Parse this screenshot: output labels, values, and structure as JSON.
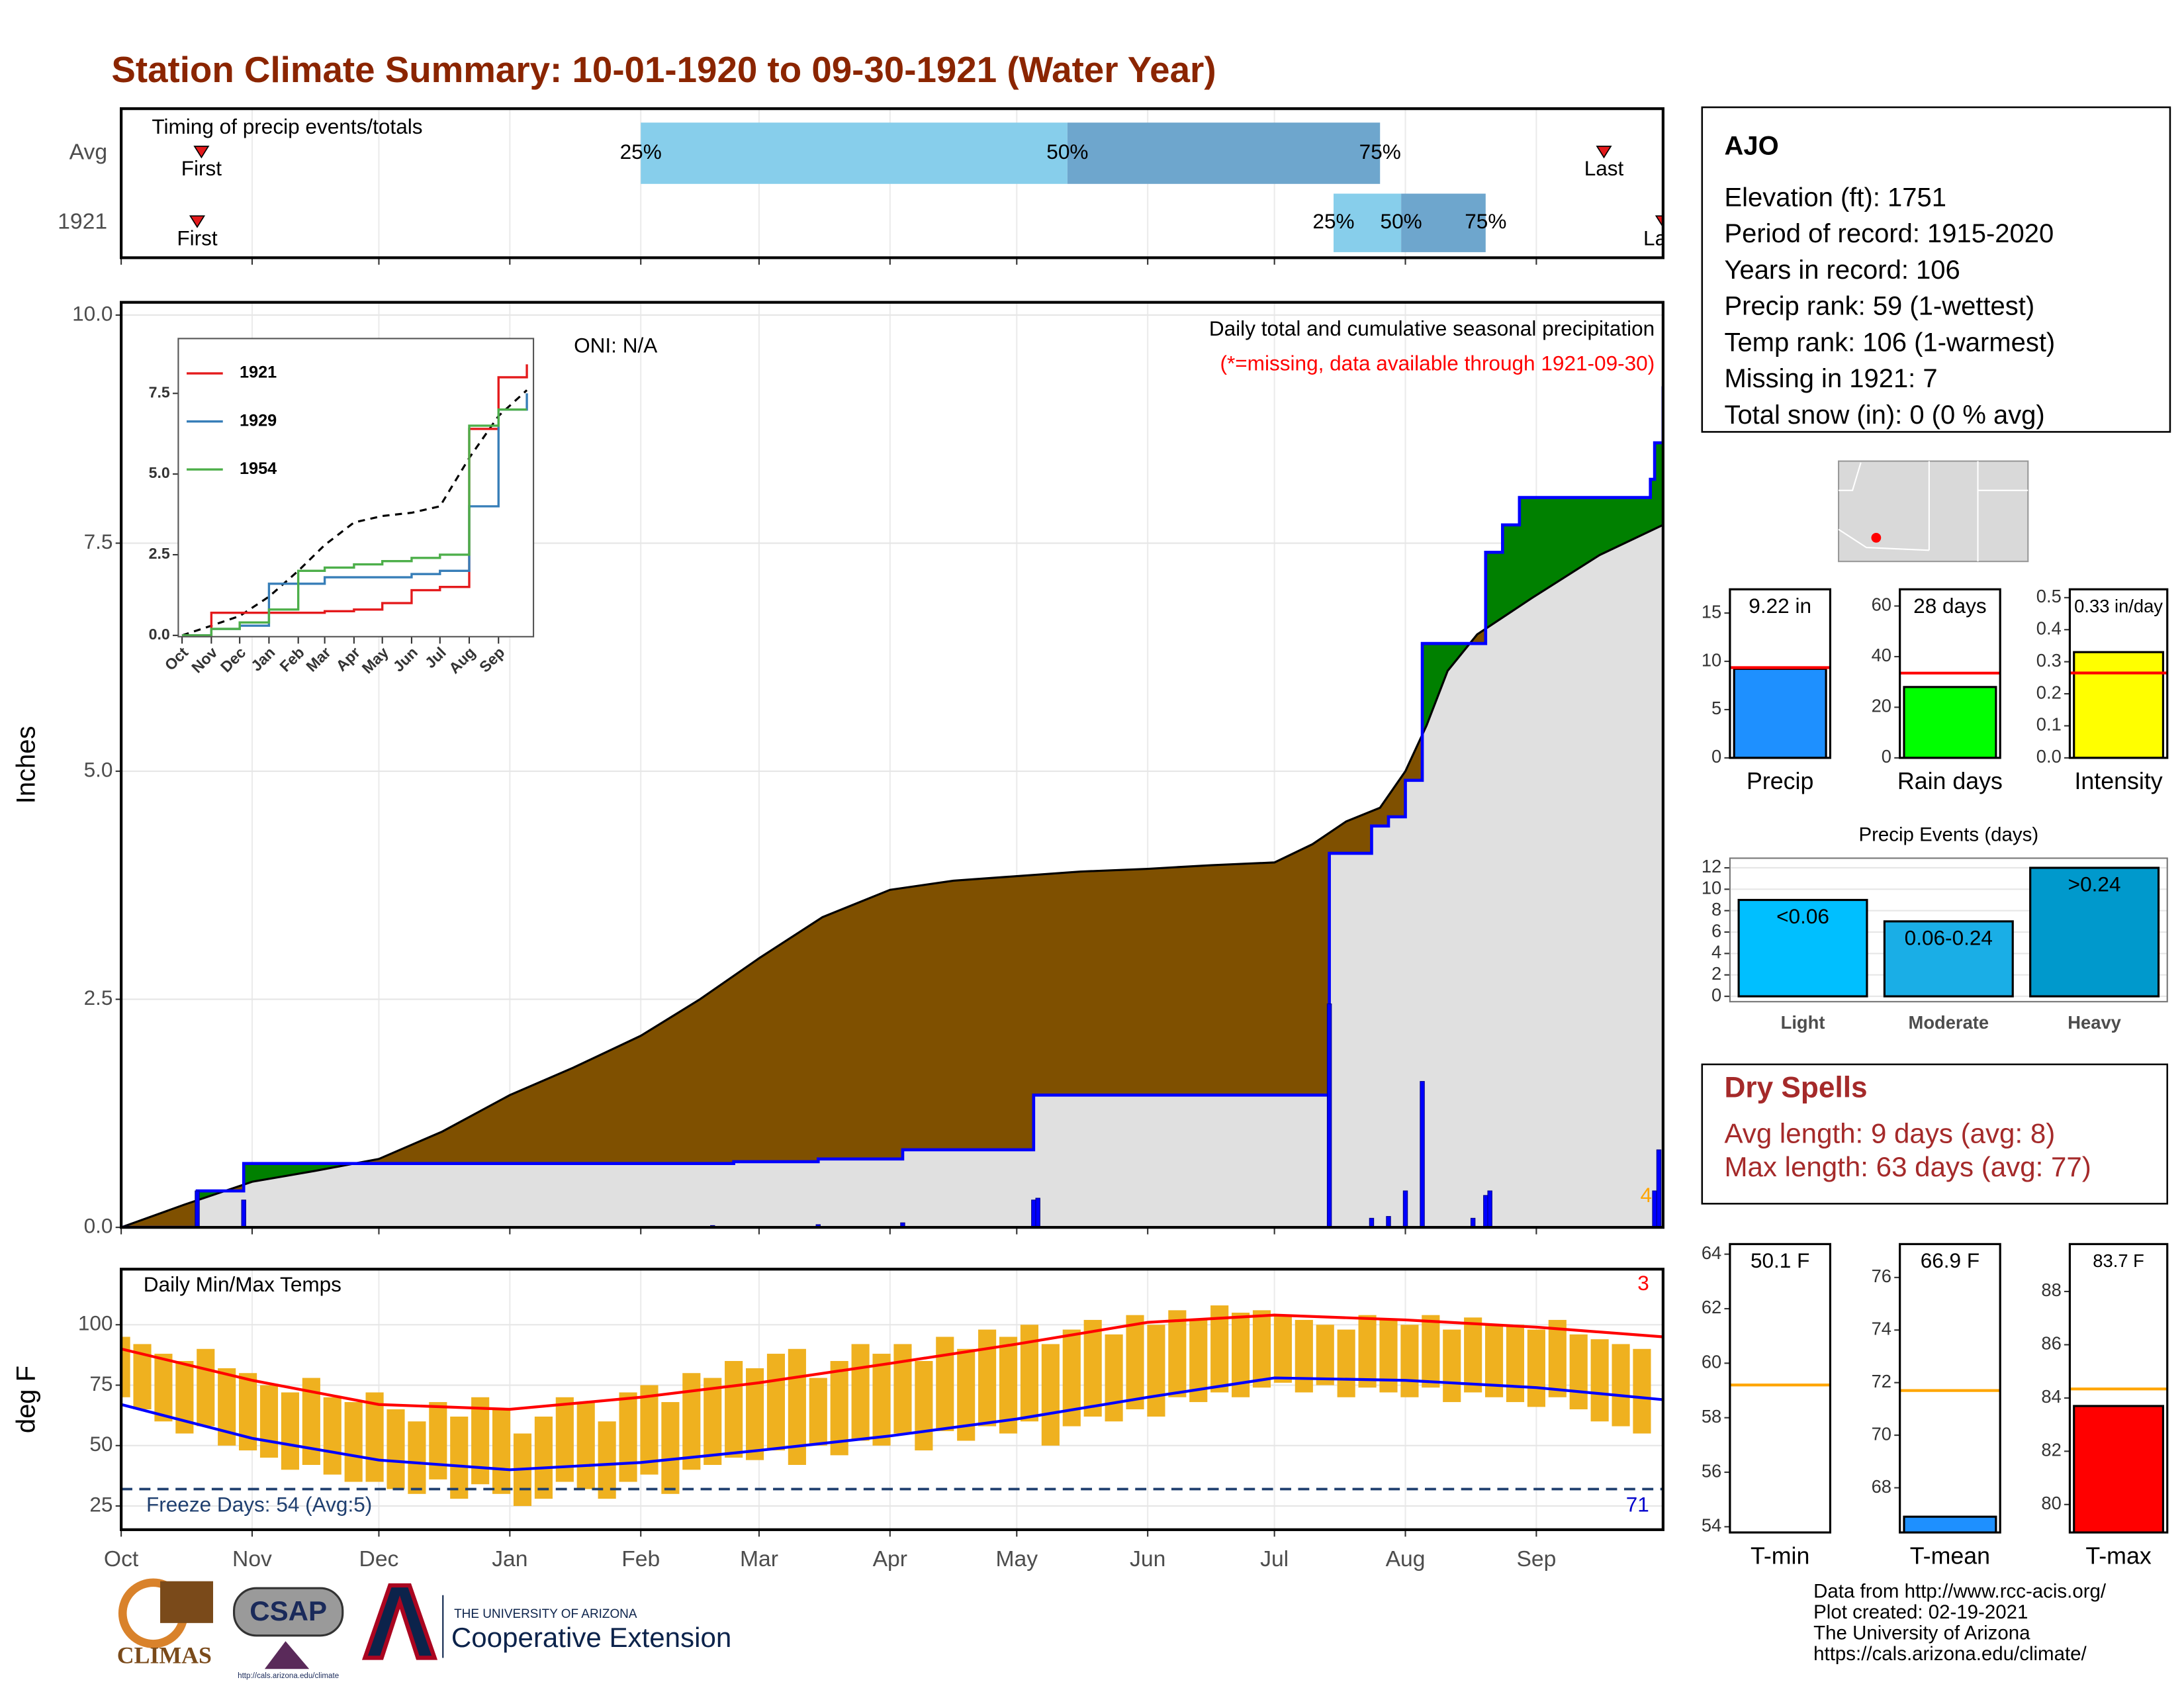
{
  "title": "Station Climate Summary: 10-01-1920 to 09-30-1921 (Water Year)",
  "chart_data": [
    {
      "type": "timing",
      "title": "Timing of precip events/totals",
      "categories": [
        "Avg",
        "1921"
      ],
      "xlim": [
        0,
        365
      ],
      "xticks": [
        0,
        31,
        61,
        92,
        123,
        151,
        182,
        212,
        243,
        273,
        304,
        335
      ],
      "grid": true,
      "colors": [
        "#87ceeb",
        "#6ea6cd"
      ],
      "marker_color": "#e31a1c",
      "first_label": "First",
      "last_label": "Last",
      "quartile_labels": [
        "25%",
        "50%",
        "75%"
      ],
      "rows": [
        {
          "first": 19,
          "quartiles": [
            123,
            224,
            298
          ],
          "last": 351
        },
        {
          "first": 18,
          "quartiles": [
            287,
            303,
            323
          ],
          "last": 365
        }
      ]
    },
    {
      "type": "cumulative",
      "title": "Daily total and cumulative seasonal precipitation",
      "subtitle": "(*=missing, data available through 1921-09-30)",
      "annotations": [
        "ONI: N/A",
        "4"
      ],
      "ylabel": "Inches",
      "xlim": [
        0,
        365
      ],
      "ylim": [
        0,
        10.14
      ],
      "xticks": [
        0,
        31,
        61,
        92,
        123,
        151,
        182,
        212,
        243,
        273,
        304,
        335
      ],
      "yticks": [
        {
          "value": 0,
          "label": "0.0"
        },
        {
          "value": 2.5,
          "label": "2.5"
        },
        {
          "value": 5,
          "label": "5.0"
        },
        {
          "value": 7.5,
          "label": "7.5"
        },
        {
          "value": 10,
          "label": "10.0"
        }
      ],
      "grid": true,
      "average": {
        "color": "#000000",
        "x": [
          0,
          15,
          31,
          46,
          61,
          76,
          92,
          107,
          123,
          137,
          151,
          166,
          182,
          197,
          212,
          227,
          243,
          258,
          273,
          282,
          290,
          298,
          304,
          309,
          314,
          321,
          334,
          350,
          365
        ],
        "values": [
          0,
          0.25,
          0.5,
          0.62,
          0.75,
          1.05,
          1.45,
          1.75,
          2.1,
          2.5,
          2.95,
          3.4,
          3.7,
          3.8,
          3.85,
          3.9,
          3.93,
          3.97,
          4.0,
          4.2,
          4.45,
          4.6,
          5.0,
          5.5,
          6.1,
          6.5,
          6.9,
          7.37,
          7.7
        ]
      },
      "observed": {
        "color": "#0000ff",
        "x": [
          0,
          18,
          29,
          145,
          165,
          185,
          216,
          286,
          296,
          300,
          304,
          308,
          323,
          327,
          331,
          362,
          363,
          365
        ],
        "values": [
          0,
          0.4,
          0.7,
          0.72,
          0.75,
          0.85,
          1.45,
          4.1,
          4.4,
          4.5,
          4.9,
          6.4,
          7.4,
          7.7,
          8.0,
          8.2,
          8.6,
          9.22
        ]
      },
      "daily": {
        "color": "#0000ff",
        "x": [
          18,
          29,
          140,
          165,
          185,
          216,
          217,
          286,
          296,
          300,
          304,
          308,
          320,
          323,
          324,
          363,
          364
        ],
        "values": [
          0.4,
          0.3,
          0.02,
          0.03,
          0.05,
          0.3,
          0.32,
          2.45,
          0.1,
          0.12,
          0.4,
          1.6,
          0.1,
          0.35,
          0.4,
          0.4,
          0.85
        ]
      },
      "colors": {
        "below": "#7f5000",
        "above": "#008000",
        "base": "#e0e0e0"
      }
    },
    {
      "type": "line",
      "xlim": [
        -4,
        372
      ],
      "ylim": [
        -0.04,
        9.2
      ],
      "xticks": [
        {
          "value": 0,
          "label": "Oct"
        },
        {
          "value": 31,
          "label": "Nov"
        },
        {
          "value": 61,
          "label": "Dec"
        },
        {
          "value": 92,
          "label": "Jan"
        },
        {
          "value": 123,
          "label": "Feb"
        },
        {
          "value": 151,
          "label": "Mar"
        },
        {
          "value": 182,
          "label": "Apr"
        },
        {
          "value": 212,
          "label": "May"
        },
        {
          "value": 243,
          "label": "Jun"
        },
        {
          "value": 273,
          "label": "Jul"
        },
        {
          "value": 304,
          "label": "Aug"
        },
        {
          "value": 335,
          "label": "Sep"
        }
      ],
      "yticks": [
        {
          "value": 0,
          "label": "0.0"
        },
        {
          "value": 2.5,
          "label": "2.5"
        },
        {
          "value": 5,
          "label": "5.0"
        },
        {
          "value": 7.5,
          "label": "7.5"
        }
      ],
      "step": true,
      "x": [
        0,
        31,
        61,
        92,
        123,
        151,
        182,
        212,
        243,
        273,
        304,
        335,
        365
      ],
      "series": [
        {
          "name": "1921",
          "color": "#e41a1c",
          "values": [
            0,
            0.7,
            0.7,
            0.7,
            0.7,
            0.75,
            0.8,
            1.0,
            1.4,
            1.5,
            6.4,
            8.0,
            8.4
          ]
        },
        {
          "name": "1929",
          "color": "#377eb8",
          "values": [
            0,
            0.2,
            0.3,
            1.6,
            1.6,
            1.8,
            1.8,
            1.8,
            1.9,
            2.0,
            4.0,
            7.0,
            7.5
          ]
        },
        {
          "name": "1954",
          "color": "#4daf4a",
          "values": [
            0,
            0.2,
            0.4,
            0.8,
            2.0,
            2.1,
            2.2,
            2.3,
            2.4,
            2.5,
            6.5,
            7.0,
            7.0
          ]
        }
      ],
      "average": {
        "color": "#000000",
        "values": [
          0,
          0.3,
          0.6,
          1.2,
          2.0,
          2.8,
          3.5,
          3.7,
          3.8,
          4.0,
          5.5,
          6.8,
          7.6
        ]
      }
    },
    {
      "type": "temps",
      "title": "Daily Min/Max Temps",
      "ylabel": "deg F",
      "annotations": [
        "Freeze Days: 54 (Avg:5)",
        "3",
        "71"
      ],
      "xlim": [
        0,
        365
      ],
      "ylim": [
        15.2,
        123
      ],
      "xticks": [
        {
          "value": 0,
          "label": "Oct"
        },
        {
          "value": 31,
          "label": "Nov"
        },
        {
          "value": 61,
          "label": "Dec"
        },
        {
          "value": 92,
          "label": "Jan"
        },
        {
          "value": 123,
          "label": "Feb"
        },
        {
          "value": 151,
          "label": "Mar"
        },
        {
          "value": 182,
          "label": "Apr"
        },
        {
          "value": 212,
          "label": "May"
        },
        {
          "value": 243,
          "label": "Jun"
        },
        {
          "value": 273,
          "label": "Jul"
        },
        {
          "value": 304,
          "label": "Aug"
        },
        {
          "value": 335,
          "label": "Sep"
        }
      ],
      "yticks": [
        25,
        50,
        75,
        100
      ],
      "grid": true,
      "bar_color": "#efb11f",
      "x": [
        0,
        5,
        10,
        15,
        20,
        25,
        30,
        35,
        40,
        45,
        50,
        55,
        60,
        65,
        70,
        75,
        80,
        85,
        90,
        95,
        100,
        105,
        110,
        115,
        120,
        125,
        130,
        135,
        140,
        145,
        150,
        155,
        160,
        165,
        170,
        175,
        180,
        185,
        190,
        195,
        200,
        205,
        210,
        215,
        220,
        225,
        230,
        235,
        240,
        245,
        250,
        255,
        260,
        265,
        270,
        275,
        280,
        285,
        290,
        295,
        300,
        305,
        310,
        315,
        320,
        325,
        330,
        335,
        340,
        345,
        350,
        355,
        360
      ],
      "max_values": [
        95,
        92,
        88,
        85,
        90,
        82,
        80,
        75,
        72,
        78,
        70,
        68,
        72,
        65,
        60,
        68,
        62,
        70,
        65,
        55,
        62,
        70,
        68,
        60,
        72,
        75,
        68,
        80,
        78,
        85,
        82,
        88,
        90,
        78,
        85,
        92,
        88,
        92,
        85,
        95,
        90,
        98,
        95,
        100,
        92,
        98,
        102,
        96,
        104,
        100,
        106,
        102,
        108,
        105,
        106,
        104,
        102,
        100,
        98,
        104,
        102,
        100,
        104,
        98,
        103,
        100,
        100,
        98,
        102,
        96,
        94,
        92,
        90
      ],
      "min_values": [
        70,
        65,
        60,
        55,
        58,
        50,
        48,
        45,
        40,
        42,
        38,
        35,
        35,
        32,
        30,
        36,
        28,
        34,
        30,
        25,
        28,
        35,
        32,
        28,
        35,
        38,
        30,
        40,
        42,
        45,
        44,
        48,
        42,
        50,
        46,
        52,
        50,
        55,
        48,
        56,
        52,
        58,
        55,
        60,
        50,
        58,
        62,
        60,
        65,
        62,
        70,
        68,
        72,
        70,
        74,
        76,
        72,
        75,
        70,
        74,
        72,
        70,
        74,
        68,
        72,
        70,
        68,
        66,
        70,
        65,
        60,
        58,
        55
      ],
      "series": [
        {
          "color": "#ff0000",
          "x": [
            0,
            31,
            61,
            92,
            123,
            151,
            182,
            212,
            243,
            273,
            304,
            335,
            365
          ],
          "values": [
            90,
            77,
            67,
            65,
            70,
            76,
            84,
            92,
            101,
            104,
            102,
            99,
            95
          ]
        },
        {
          "color": "#0000ff",
          "x": [
            0,
            31,
            61,
            92,
            123,
            151,
            182,
            212,
            243,
            273,
            304,
            335,
            365
          ],
          "values": [
            67,
            53,
            44,
            40,
            43,
            48,
            54,
            61,
            70,
            78,
            77,
            74,
            69
          ]
        }
      ],
      "freeze_line": 32,
      "freeze_color": "#1f3f6f"
    },
    {
      "type": "summary_bar",
      "category": "Precip",
      "values": [
        9.22
      ],
      "value_labels": [
        "9.22 in"
      ],
      "average": 9.35,
      "color": "#1e90ff",
      "average_color": "#ff0000",
      "ylim": [
        0,
        17.46
      ],
      "yticks": [
        0,
        5,
        10,
        15
      ]
    },
    {
      "type": "summary_bar",
      "category": "Rain days",
      "values": [
        28
      ],
      "value_labels": [
        "28 days"
      ],
      "average": 33.5,
      "color": "#00ff00",
      "average_color": "#ff0000",
      "ylim": [
        0,
        66.6
      ],
      "yticks": [
        0,
        20,
        40,
        60
      ]
    },
    {
      "type": "summary_bar",
      "category": "Intensity",
      "values": [
        0.33
      ],
      "value_labels": [
        "0.33 in/day"
      ],
      "average": 0.265,
      "color": "#ffff00",
      "average_color": "#ff0000",
      "ylim": [
        0,
        0.526
      ],
      "yticks": [
        {
          "value": 0,
          "label": "0.0"
        },
        0.1,
        0.2,
        0.3,
        0.4,
        0.5
      ]
    },
    {
      "type": "bar",
      "title": "Precip Events (days)",
      "categories": [
        "Light",
        "Moderate",
        "Heavy"
      ],
      "values": [
        9,
        7,
        12
      ],
      "bin_labels": [
        "<0.06",
        "0.06-0.24",
        ">0.24"
      ],
      "colors": [
        "#00bfff",
        "#1aaee6",
        "#0099cc"
      ],
      "ylim": [
        -0.5,
        12.9
      ],
      "yticks": [
        0,
        2,
        4,
        6,
        8,
        10,
        12
      ],
      "grid": true
    },
    {
      "type": "summary_bar",
      "category": "T-min",
      "values": [
        50.1
      ],
      "value_labels": [
        "50.1 F"
      ],
      "average": 59.2,
      "color": "#1e90ff",
      "average_color": "#ffa500",
      "ylim": [
        53.79,
        64.37
      ],
      "yticks": [
        54,
        56,
        58,
        60,
        62,
        64
      ]
    },
    {
      "type": "summary_bar",
      "category": "T-mean",
      "values": [
        66.9
      ],
      "value_labels": [
        "66.9 F"
      ],
      "average": 71.7,
      "color": "#1e90ff",
      "average_color": "#ffa500",
      "ylim": [
        66.3,
        77.27
      ],
      "yticks": [
        68,
        70,
        72,
        74,
        76
      ]
    },
    {
      "type": "summary_bar",
      "category": "T-max",
      "values": [
        83.7
      ],
      "value_labels": [
        "83.7 F"
      ],
      "average": 84.34,
      "color": "#ff0000",
      "average_color": "#ffa500",
      "ylim": [
        78.95,
        89.78
      ],
      "yticks": [
        80,
        82,
        84,
        86,
        88
      ]
    }
  ],
  "info": {
    "station": "AJO",
    "lines": [
      "Elevation (ft): 1751",
      "Period of record: 1915-2020",
      "Years in record: 106",
      "Precip rank: 59 (1-wettest)",
      "Temp rank: 106 (1-warmest)",
      "Missing in 1921: 7",
      "Total snow (in): 0 (0 % avg)"
    ]
  },
  "dry_spells": {
    "title": "Dry Spells",
    "lines": [
      "Avg length: 9 days (avg: 8)",
      "Max length: 63 days (avg: 77)"
    ]
  },
  "footer": {
    "credits": [
      "Data from http://www.rcc-acis.org/",
      "Plot created: 02-19-2021",
      "The University of Arizona",
      "https://cals.arizona.edu/climate/"
    ],
    "logos": [
      "CLIMAS",
      "CSAP",
      "http://cals.arizona.edu/climate",
      "THE UNIVERSITY OF ARIZONA",
      "Cooperative Extension"
    ]
  }
}
